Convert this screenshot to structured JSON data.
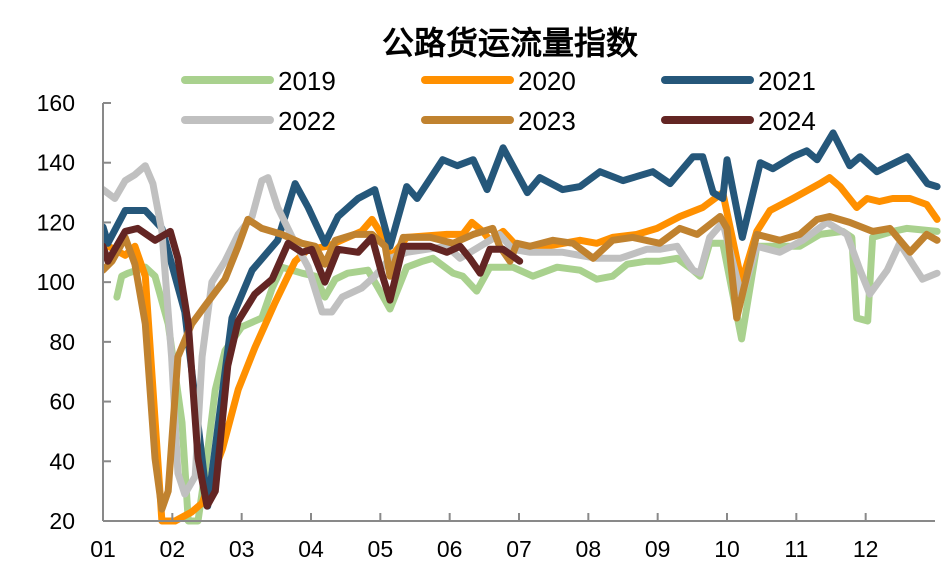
{
  "chart_data": {
    "type": "line",
    "title": "公路货运流量指数",
    "xlabel": "",
    "ylabel": "",
    "ylim": [
      20,
      160
    ],
    "yticks": [
      "20",
      "40",
      "60",
      "80",
      "100",
      "120",
      "140",
      "160"
    ],
    "xlim": [
      1,
      13
    ],
    "xticks": [
      "01",
      "02",
      "03",
      "04",
      "05",
      "06",
      "07",
      "08",
      "09",
      "10",
      "11",
      "12"
    ],
    "grid": false,
    "legend": "top",
    "series": [
      {
        "name": "2019",
        "color": "#A9D18E",
        "points": [
          [
            1.2,
            95
          ],
          [
            1.27,
            102
          ],
          [
            1.36,
            103
          ],
          [
            1.61,
            105
          ],
          [
            1.75,
            102
          ],
          [
            1.94,
            86
          ],
          [
            2.14,
            53
          ],
          [
            2.23,
            20
          ],
          [
            2.37,
            20
          ],
          [
            2.47,
            36
          ],
          [
            2.62,
            64
          ],
          [
            2.76,
            77
          ],
          [
            3.0,
            85
          ],
          [
            3.29,
            88
          ],
          [
            3.44,
            98
          ],
          [
            3.58,
            105
          ],
          [
            3.87,
            103
          ],
          [
            4.06,
            102
          ],
          [
            4.2,
            95
          ],
          [
            4.35,
            101
          ],
          [
            4.53,
            103
          ],
          [
            4.82,
            104
          ],
          [
            4.97,
            98
          ],
          [
            5.14,
            91
          ],
          [
            5.38,
            105
          ],
          [
            5.61,
            107
          ],
          [
            5.76,
            108
          ],
          [
            6.05,
            103
          ],
          [
            6.19,
            102
          ],
          [
            6.39,
            97
          ],
          [
            6.58,
            105
          ],
          [
            6.91,
            105
          ],
          [
            7.2,
            102
          ],
          [
            7.55,
            105
          ],
          [
            7.88,
            104
          ],
          [
            8.12,
            101
          ],
          [
            8.35,
            102
          ],
          [
            8.56,
            106
          ],
          [
            8.84,
            107
          ],
          [
            9.03,
            107
          ],
          [
            9.28,
            108
          ],
          [
            9.51,
            104
          ],
          [
            9.61,
            102
          ],
          [
            9.75,
            113
          ],
          [
            9.94,
            113
          ],
          [
            10.21,
            81
          ],
          [
            10.43,
            112
          ],
          [
            10.72,
            112
          ],
          [
            11.05,
            112
          ],
          [
            11.34,
            116
          ],
          [
            11.67,
            117
          ],
          [
            11.8,
            115
          ],
          [
            11.87,
            88
          ],
          [
            12.03,
            87
          ],
          [
            12.1,
            115
          ],
          [
            12.39,
            117
          ],
          [
            12.59,
            118
          ],
          [
            13.03,
            117
          ]
        ]
      },
      {
        "name": "2020",
        "color": "#FF9000",
        "points": [
          [
            1.0,
            113
          ],
          [
            1.32,
            109
          ],
          [
            1.46,
            112
          ],
          [
            1.61,
            102
          ],
          [
            1.85,
            20
          ],
          [
            2.04,
            20
          ],
          [
            2.28,
            23
          ],
          [
            2.43,
            26
          ],
          [
            2.72,
            44
          ],
          [
            2.95,
            64
          ],
          [
            3.19,
            78
          ],
          [
            3.48,
            93
          ],
          [
            3.77,
            107
          ],
          [
            3.96,
            111
          ],
          [
            4.24,
            112
          ],
          [
            4.53,
            115
          ],
          [
            4.73,
            117
          ],
          [
            4.88,
            121
          ],
          [
            5.07,
            114
          ],
          [
            5.14,
            108
          ],
          [
            5.38,
            115
          ],
          [
            5.96,
            116
          ],
          [
            6.19,
            116
          ],
          [
            6.32,
            120
          ],
          [
            6.48,
            117
          ],
          [
            6.58,
            114
          ],
          [
            6.77,
            117
          ],
          [
            7.01,
            111
          ],
          [
            7.4,
            112
          ],
          [
            7.88,
            114
          ],
          [
            8.12,
            113
          ],
          [
            8.35,
            115
          ],
          [
            8.7,
            116
          ],
          [
            8.99,
            118
          ],
          [
            9.32,
            122
          ],
          [
            9.65,
            125
          ],
          [
            9.94,
            130
          ],
          [
            10.21,
            100
          ],
          [
            10.43,
            117
          ],
          [
            10.62,
            124
          ],
          [
            10.95,
            128
          ],
          [
            11.34,
            133
          ],
          [
            11.48,
            135
          ],
          [
            11.63,
            132
          ],
          [
            11.87,
            125
          ],
          [
            12.02,
            128
          ],
          [
            12.2,
            127
          ],
          [
            12.39,
            128
          ],
          [
            12.64,
            128
          ],
          [
            12.88,
            126
          ],
          [
            13.03,
            121
          ]
        ]
      },
      {
        "name": "2021",
        "color": "#25577A",
        "points": [
          [
            1.0,
            118.5
          ],
          [
            1.07,
            113
          ],
          [
            1.32,
            124
          ],
          [
            1.61,
            124
          ],
          [
            1.85,
            118
          ],
          [
            2.18,
            90
          ],
          [
            2.51,
            25
          ],
          [
            2.86,
            88
          ],
          [
            3.15,
            104
          ],
          [
            3.52,
            114
          ],
          [
            3.77,
            133
          ],
          [
            3.96,
            125
          ],
          [
            4.2,
            113
          ],
          [
            4.39,
            122
          ],
          [
            4.68,
            128
          ],
          [
            4.92,
            131
          ],
          [
            5.14,
            112
          ],
          [
            5.38,
            132
          ],
          [
            5.53,
            128
          ],
          [
            5.9,
            141
          ],
          [
            6.11,
            139
          ],
          [
            6.34,
            141
          ],
          [
            6.54,
            131
          ],
          [
            6.77,
            145
          ],
          [
            7.12,
            130
          ],
          [
            7.3,
            135
          ],
          [
            7.63,
            131
          ],
          [
            7.88,
            132
          ],
          [
            8.17,
            137
          ],
          [
            8.5,
            134
          ],
          [
            8.93,
            137
          ],
          [
            9.18,
            133
          ],
          [
            9.51,
            142
          ],
          [
            9.65,
            142
          ],
          [
            9.8,
            130
          ],
          [
            9.94,
            128
          ],
          [
            10.0,
            141
          ],
          [
            10.22,
            115
          ],
          [
            10.48,
            140
          ],
          [
            10.66,
            138
          ],
          [
            10.95,
            142
          ],
          [
            11.15,
            144
          ],
          [
            11.3,
            141
          ],
          [
            11.53,
            150
          ],
          [
            11.77,
            139
          ],
          [
            11.92,
            142
          ],
          [
            12.16,
            137
          ],
          [
            12.6,
            142
          ],
          [
            12.89,
            133
          ],
          [
            13.03,
            132
          ]
        ]
      },
      {
        "name": "2022",
        "color": "#C0C0C0",
        "points": [
          [
            1.0,
            131
          ],
          [
            1.17,
            128
          ],
          [
            1.32,
            134
          ],
          [
            1.46,
            136
          ],
          [
            1.61,
            139
          ],
          [
            1.72,
            133
          ],
          [
            1.85,
            117
          ],
          [
            1.99,
            75
          ],
          [
            2.08,
            36
          ],
          [
            2.18,
            29
          ],
          [
            2.33,
            35
          ],
          [
            2.43,
            75
          ],
          [
            2.57,
            100
          ],
          [
            2.76,
            107
          ],
          [
            2.95,
            116
          ],
          [
            3.15,
            122
          ],
          [
            3.29,
            134
          ],
          [
            3.38,
            135
          ],
          [
            3.52,
            125
          ],
          [
            3.73,
            115
          ],
          [
            3.96,
            105
          ],
          [
            4.16,
            90
          ],
          [
            4.3,
            90
          ],
          [
            4.45,
            95
          ],
          [
            4.73,
            98
          ],
          [
            4.92,
            102
          ],
          [
            5.14,
            108
          ],
          [
            5.38,
            110
          ],
          [
            5.96,
            112
          ],
          [
            6.15,
            108
          ],
          [
            6.44,
            112
          ],
          [
            6.72,
            116
          ],
          [
            6.91,
            111
          ],
          [
            7.16,
            110
          ],
          [
            7.63,
            110
          ],
          [
            8.12,
            108
          ],
          [
            8.46,
            108
          ],
          [
            8.84,
            111
          ],
          [
            9.03,
            111
          ],
          [
            9.28,
            112
          ],
          [
            9.51,
            104
          ],
          [
            9.61,
            103
          ],
          [
            9.75,
            115
          ],
          [
            9.94,
            120
          ],
          [
            10.21,
            95
          ],
          [
            10.43,
            112
          ],
          [
            10.76,
            110
          ],
          [
            11.09,
            114
          ],
          [
            11.44,
            120
          ],
          [
            11.73,
            116
          ],
          [
            11.92,
            104
          ],
          [
            12.06,
            96
          ],
          [
            12.31,
            104
          ],
          [
            12.49,
            113
          ],
          [
            12.68,
            106
          ],
          [
            12.82,
            101
          ],
          [
            13.03,
            103
          ]
        ]
      },
      {
        "name": "2023",
        "color": "#C0822F",
        "points": [
          [
            1.0,
            104
          ],
          [
            1.13,
            107
          ],
          [
            1.32,
            115
          ],
          [
            1.46,
            106
          ],
          [
            1.61,
            86
          ],
          [
            1.75,
            41
          ],
          [
            1.85,
            24
          ],
          [
            1.94,
            30
          ],
          [
            2.08,
            75
          ],
          [
            2.28,
            86
          ],
          [
            2.47,
            92
          ],
          [
            2.76,
            101
          ],
          [
            2.95,
            112
          ],
          [
            3.09,
            121
          ],
          [
            3.29,
            118
          ],
          [
            3.58,
            116
          ],
          [
            3.87,
            113
          ],
          [
            4.06,
            112
          ],
          [
            4.2,
            106
          ],
          [
            4.35,
            114
          ],
          [
            4.63,
            116
          ],
          [
            4.88,
            116
          ],
          [
            5.07,
            112
          ],
          [
            5.14,
            102
          ],
          [
            5.33,
            115
          ],
          [
            5.72,
            115
          ],
          [
            6.05,
            113
          ],
          [
            6.34,
            116
          ],
          [
            6.62,
            118
          ],
          [
            6.72,
            112
          ],
          [
            6.87,
            107
          ],
          [
            6.97,
            113
          ],
          [
            7.16,
            112
          ],
          [
            7.49,
            114
          ],
          [
            7.78,
            113
          ],
          [
            8.07,
            108
          ],
          [
            8.35,
            114
          ],
          [
            8.64,
            115
          ],
          [
            9.03,
            113
          ],
          [
            9.32,
            118
          ],
          [
            9.57,
            116
          ],
          [
            9.9,
            122
          ],
          [
            10.0,
            118
          ],
          [
            10.14,
            88
          ],
          [
            10.43,
            116
          ],
          [
            10.76,
            114
          ],
          [
            11.05,
            116
          ],
          [
            11.3,
            121
          ],
          [
            11.48,
            122
          ],
          [
            11.77,
            120
          ],
          [
            12.1,
            117
          ],
          [
            12.35,
            118
          ],
          [
            12.64,
            110
          ],
          [
            12.88,
            116
          ],
          [
            13.03,
            114
          ]
        ]
      },
      {
        "name": "2024",
        "color": "#632523",
        "points": [
          [
            1.0,
            112
          ],
          [
            1.07,
            107
          ],
          [
            1.32,
            117
          ],
          [
            1.5,
            118
          ],
          [
            1.75,
            114
          ],
          [
            1.97,
            117
          ],
          [
            2.08,
            108
          ],
          [
            2.23,
            86
          ],
          [
            2.37,
            41
          ],
          [
            2.5,
            25
          ],
          [
            2.62,
            30
          ],
          [
            2.8,
            72
          ],
          [
            2.95,
            87
          ],
          [
            3.19,
            96
          ],
          [
            3.44,
            101
          ],
          [
            3.67,
            113
          ],
          [
            3.87,
            110
          ],
          [
            4.01,
            111
          ],
          [
            4.2,
            100
          ],
          [
            4.39,
            111
          ],
          [
            4.68,
            110
          ],
          [
            4.88,
            115
          ],
          [
            5.02,
            103
          ],
          [
            5.14,
            94
          ],
          [
            5.33,
            112
          ],
          [
            5.72,
            112
          ],
          [
            5.96,
            110
          ],
          [
            6.15,
            112
          ],
          [
            6.29,
            108
          ],
          [
            6.44,
            103
          ],
          [
            6.58,
            111
          ],
          [
            6.77,
            111
          ],
          [
            7.01,
            107
          ]
        ]
      }
    ]
  }
}
